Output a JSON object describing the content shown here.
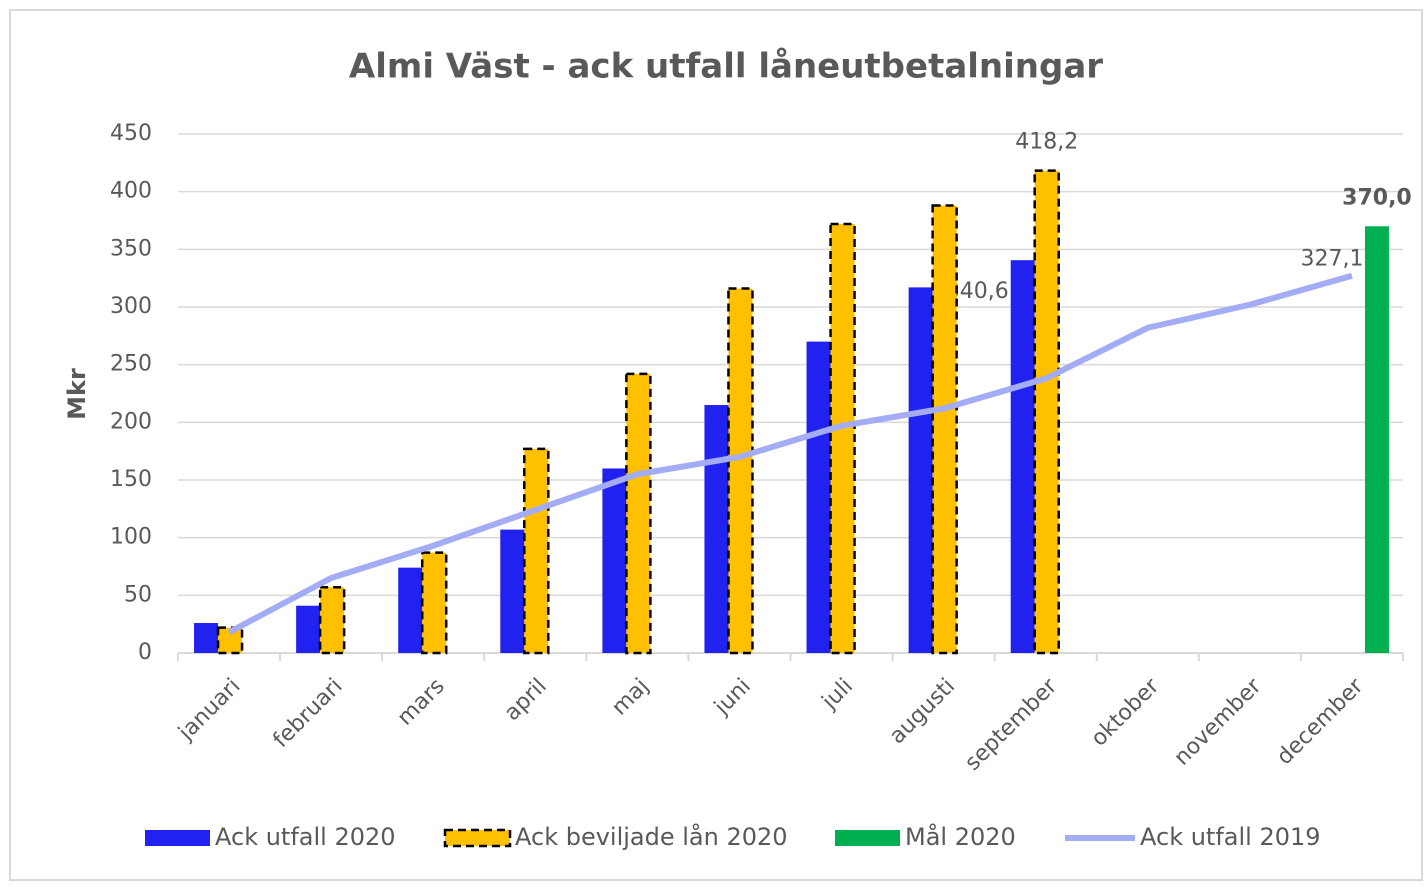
{
  "chart_data": {
    "type": "bar",
    "title": "Almi Väst - ack utfall låneutbetalningar",
    "y_label": "Mkr",
    "categories": [
      "januari",
      "februari",
      "mars",
      "april",
      "maj",
      "juni",
      "juli",
      "augusti",
      "september",
      "oktober",
      "november",
      "december"
    ],
    "series": [
      {
        "name": "Ack utfall 2020",
        "type": "bar",
        "color": "#2121f0",
        "values": [
          26,
          41,
          74,
          107,
          160,
          215,
          270,
          317,
          340.6,
          null,
          null,
          null
        ],
        "value_labels": [
          null,
          null,
          null,
          null,
          null,
          null,
          null,
          null,
          "340,6",
          null,
          null,
          null
        ]
      },
      {
        "name": "Ack beviljade lån 2020",
        "type": "bar",
        "color": "#ffc000",
        "border": "dashed",
        "values": [
          22,
          57,
          87,
          177,
          242,
          316,
          372,
          388,
          418.2,
          null,
          null,
          null
        ],
        "value_labels": [
          null,
          null,
          null,
          null,
          null,
          null,
          null,
          null,
          "418,2",
          null,
          null,
          null
        ]
      },
      {
        "name": "Mål 2020",
        "type": "bar",
        "color": "#00b050",
        "values": [
          null,
          null,
          null,
          null,
          null,
          null,
          null,
          null,
          null,
          null,
          null,
          370.0
        ],
        "value_labels": [
          null,
          null,
          null,
          null,
          null,
          null,
          null,
          null,
          null,
          null,
          null,
          "370,0"
        ]
      },
      {
        "name": "Ack utfall 2019",
        "type": "line",
        "color": "#a3acf5",
        "values": [
          18,
          65,
          93,
          124,
          155,
          170,
          197,
          212,
          238,
          282,
          302,
          327.1
        ],
        "value_labels": [
          null,
          null,
          null,
          null,
          null,
          null,
          null,
          null,
          null,
          null,
          null,
          "327,1"
        ]
      }
    ],
    "ylim": [
      0,
      450
    ],
    "yticks": [
      0,
      50,
      100,
      150,
      200,
      250,
      300,
      350,
      400,
      450
    ],
    "grid": true,
    "legend": "bottom"
  }
}
